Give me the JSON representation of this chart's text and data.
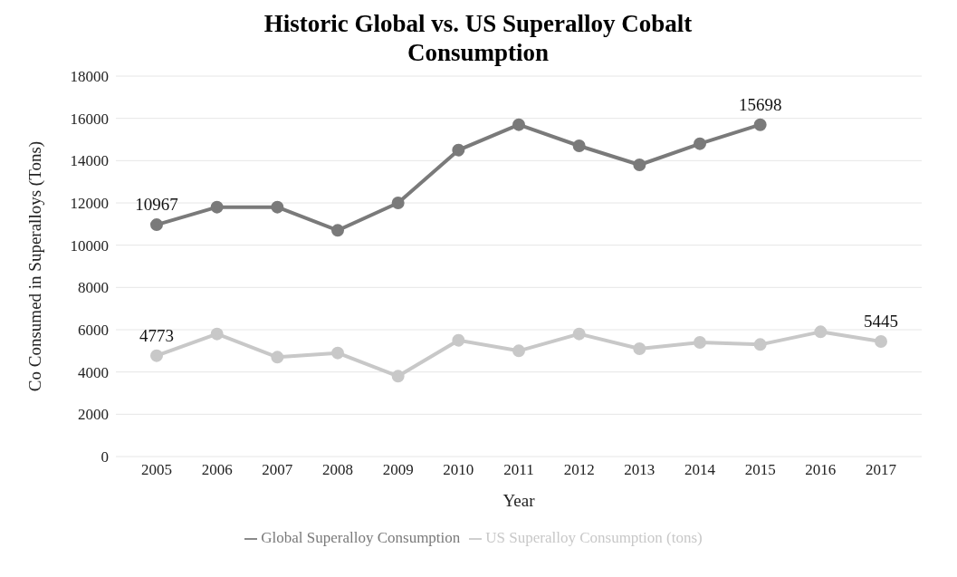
{
  "chart_data": {
    "type": "line",
    "title": "Historic Global vs. US Superalloy Cobalt Consumption",
    "xlabel": "Year",
    "ylabel": "Co Consumed in Superalloys (Tons)",
    "categories": [
      "2005",
      "2006",
      "2007",
      "2008",
      "2009",
      "2010",
      "2011",
      "2012",
      "2013",
      "2014",
      "2015",
      "2016",
      "2017"
    ],
    "series": [
      {
        "name": "Global Superalloy Consumption",
        "color": "#7a7a7a",
        "values": [
          10967,
          11800,
          11800,
          10700,
          12000,
          14500,
          15700,
          14700,
          13800,
          14800,
          15698,
          null,
          null
        ],
        "value_labels": [
          "10967",
          null,
          null,
          null,
          null,
          null,
          null,
          null,
          null,
          null,
          "15698",
          null,
          null
        ]
      },
      {
        "name": "US Superalloy Consumption (tons)",
        "color": "#c8c8c8",
        "values": [
          4773,
          5800,
          4700,
          4900,
          3800,
          5500,
          5000,
          5800,
          5100,
          5400,
          5300,
          5900,
          5445
        ],
        "value_labels": [
          "4773",
          null,
          null,
          null,
          null,
          null,
          null,
          null,
          null,
          null,
          null,
          null,
          "5445"
        ]
      }
    ],
    "ylim": [
      0,
      18000
    ],
    "yticks": [
      0,
      2000,
      4000,
      6000,
      8000,
      10000,
      12000,
      14000,
      16000,
      18000
    ],
    "grid": "y",
    "legend": "bottom",
    "marker": "circle",
    "line_style": "solid"
  }
}
